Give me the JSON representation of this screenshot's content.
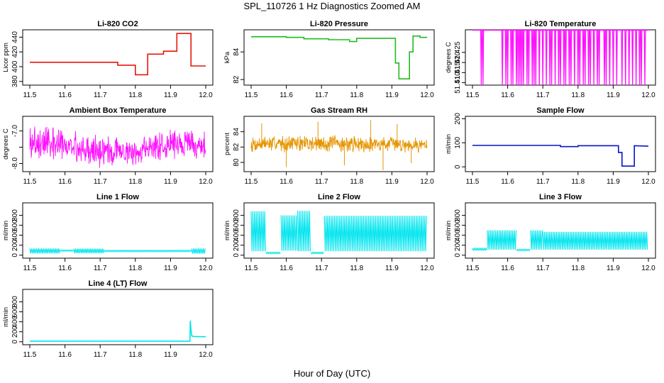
{
  "figure": {
    "main_title": "SPL_110726  1 Hz Diagnostics Zoomed AM",
    "x_label": "Hour of Day (UTC)"
  },
  "chart_data": [
    {
      "id": "co2",
      "type": "line",
      "title": "Li-820 CO2",
      "ylabel": "Licor ppm",
      "color": "#e8150b",
      "style": "steps",
      "xlim": [
        11.5,
        12.0
      ],
      "ylim": [
        375,
        450
      ],
      "xticks": [
        "11.5",
        "11.6",
        "11.7",
        "11.8",
        "11.9",
        "12.0"
      ],
      "yticks": [
        380,
        400,
        420,
        440
      ],
      "series": [
        {
          "name": "CO2",
          "x": [
            11.5,
            11.75,
            11.75,
            11.8,
            11.8,
            11.835,
            11.835,
            11.88,
            11.88,
            11.918,
            11.918,
            11.958,
            11.958,
            12.0
          ],
          "y": [
            406,
            406,
            402,
            402,
            389,
            389,
            417,
            417,
            421,
            421,
            445,
            445,
            401,
            401
          ]
        }
      ]
    },
    {
      "id": "pressure",
      "type": "line",
      "title": "Li-820 Pressure",
      "ylabel": "kPa",
      "color": "#22bb22",
      "style": "steps",
      "xlim": [
        11.5,
        12.0
      ],
      "ylim": [
        81.6,
        85.6
      ],
      "xticks": [
        "11.5",
        "11.6",
        "11.7",
        "11.8",
        "11.9",
        "12.0"
      ],
      "yticks": [
        82,
        84
      ],
      "series": [
        {
          "name": "Pressure",
          "x": [
            11.5,
            11.6,
            11.6,
            11.65,
            11.65,
            11.72,
            11.72,
            11.78,
            11.78,
            11.8,
            11.8,
            11.91,
            11.91,
            11.92,
            11.92,
            11.95,
            11.95,
            11.96,
            11.96,
            11.98,
            11.98,
            12.0
          ],
          "y": [
            85.1,
            85.1,
            85.05,
            85.05,
            84.95,
            84.95,
            84.88,
            84.88,
            84.75,
            84.75,
            84.98,
            84.98,
            83.2,
            83.2,
            82.05,
            82.05,
            84.0,
            84.0,
            85.15,
            85.15,
            85.05,
            85.05
          ]
        }
      ]
    },
    {
      "id": "licor_temp",
      "type": "line",
      "title": "Li-820 Temperature",
      "ylabel": "degrees C",
      "color": "#ff10ff",
      "style": "spikes",
      "spike_direction": "down",
      "xlim": [
        11.5,
        12.0
      ],
      "ylim": [
        51.4088,
        51.4362
      ],
      "xticks": [
        "11.5",
        "11.6",
        "11.7",
        "11.8",
        "11.9",
        "12.0"
      ],
      "yticks": [
        51.41,
        51.415,
        51.42,
        51.425
      ],
      "ytick_labels": [
        "51.410",
        "51.415",
        "51.420",
        "51.425"
      ],
      "series": [
        {
          "name": "Temperature",
          "baseline": 51.436,
          "low": 51.4088,
          "spike_x": [
            11.525,
            11.53,
            11.585,
            11.595,
            11.6,
            11.61,
            11.615,
            11.625,
            11.63,
            11.635,
            11.64,
            11.645,
            11.655,
            11.66,
            11.67,
            11.675,
            11.68,
            11.69,
            11.7,
            11.71,
            11.72,
            11.725,
            11.735,
            11.745,
            11.75,
            11.76,
            11.765,
            11.775,
            11.78,
            11.79,
            11.8,
            11.805,
            11.815,
            11.82,
            11.83,
            11.835,
            11.845,
            11.855,
            11.86,
            11.875,
            11.88,
            11.89,
            11.9,
            11.91,
            11.925,
            11.935,
            11.945,
            11.955,
            11.965,
            11.975,
            11.98,
            11.99
          ]
        }
      ]
    },
    {
      "id": "box_temp",
      "type": "line",
      "title": "Ambient Box Temperature",
      "ylabel": "degrees C",
      "color": "#ff10ff",
      "style": "noise",
      "xlim": [
        11.5,
        12.0
      ],
      "ylim": [
        -8.25,
        -6.55
      ],
      "xticks": [
        "11.5",
        "11.6",
        "11.7",
        "11.8",
        "11.9",
        "12.0"
      ],
      "yticks": [
        -8.0,
        -7.5,
        -7.0
      ],
      "ytick_labels": [
        "-8.0",
        "",
        "-7.0"
      ],
      "series": [
        {
          "name": "Box temperature",
          "x": [
            11.5,
            11.55,
            11.6,
            11.65,
            11.7,
            11.75,
            11.8,
            11.85,
            11.9,
            11.95,
            12.0
          ],
          "y_min": [
            -7.95,
            -8.0,
            -8.05,
            -8.1,
            -8.15,
            -8.15,
            -8.1,
            -8.0,
            -7.95,
            -7.9,
            -7.95
          ],
          "y_max": [
            -6.7,
            -6.75,
            -6.9,
            -7.0,
            -7.05,
            -7.1,
            -7.15,
            -7.0,
            -6.9,
            -6.9,
            -6.95
          ],
          "seed": 3
        }
      ]
    },
    {
      "id": "rh",
      "type": "line",
      "title": "Gas Stream RH",
      "ylabel": "percent",
      "color": "#e69500",
      "style": "noise",
      "xlim": [
        11.5,
        12.0
      ],
      "ylim": [
        78.8,
        86.0
      ],
      "xticks": [
        "11.5",
        "11.6",
        "11.7",
        "11.8",
        "11.9",
        "12.0"
      ],
      "yticks": [
        80,
        82,
        84
      ],
      "series": [
        {
          "name": "RH",
          "x": [
            11.5,
            11.6,
            11.7,
            11.8,
            11.9,
            12.0
          ],
          "y_min": [
            81.2,
            81.3,
            81.1,
            81.2,
            81.3,
            81.2
          ],
          "y_max": [
            83.6,
            83.7,
            83.8,
            83.6,
            83.5,
            83.4
          ],
          "outliers": [
            [
              11.53,
              85.1
            ],
            [
              11.6,
              79.4
            ],
            [
              11.69,
              85.3
            ],
            [
              11.765,
              79.6
            ],
            [
              11.84,
              85.5
            ],
            [
              11.875,
              79.0
            ],
            [
              11.915,
              85.0
            ],
            [
              11.955,
              79.9
            ]
          ],
          "seed": 7
        }
      ]
    },
    {
      "id": "sample_flow",
      "type": "line",
      "title": "Sample Flow",
      "ylabel": "ml/min",
      "color": "#0a14c8",
      "style": "steps",
      "xlim": [
        11.5,
        12.0
      ],
      "ylim": [
        -20,
        210
      ],
      "xticks": [
        "11.5",
        "11.6",
        "11.7",
        "11.8",
        "11.9",
        "12.0"
      ],
      "yticks": [
        0,
        100,
        200
      ],
      "series": [
        {
          "name": "Sample flow",
          "x": [
            11.5,
            11.75,
            11.75,
            11.8,
            11.8,
            11.915,
            11.915,
            11.925,
            11.925,
            11.955,
            11.955,
            11.96,
            11.96,
            12.0
          ],
          "y": [
            89,
            89,
            84,
            84,
            88,
            88,
            60,
            60,
            3,
            3,
            3,
            3,
            88,
            86
          ]
        }
      ]
    },
    {
      "id": "line1",
      "type": "line",
      "title": "Line 1 Flow",
      "ylabel": "ml/min",
      "color": "#00e5ee",
      "style": "bands",
      "xlim": [
        11.5,
        12.0
      ],
      "ylim": [
        -60,
        1050
      ],
      "xticks": [
        "11.5",
        "11.6",
        "11.7",
        "11.8",
        "11.9",
        "12.0"
      ],
      "yticks": [
        0,
        200,
        400,
        600,
        800
      ],
      "series": [
        {
          "name": "Line 1 flow",
          "segments": [
            [
              11.5,
              11.585,
              35,
              135
            ],
            [
              11.585,
              11.625,
              80,
              105
            ],
            [
              11.625,
              11.71,
              40,
              130
            ],
            [
              11.71,
              11.96,
              70,
              100
            ],
            [
              11.96,
              12.0,
              30,
              135
            ]
          ]
        }
      ]
    },
    {
      "id": "line2",
      "type": "line",
      "title": "Line 2 Flow",
      "ylabel": "ml/min",
      "color": "#00e5ee",
      "style": "bands",
      "xlim": [
        11.5,
        12.0
      ],
      "ylim": [
        -60,
        1050
      ],
      "xticks": [
        "11.5",
        "11.6",
        "11.7",
        "11.8",
        "11.9",
        "12.0"
      ],
      "yticks": [
        0,
        200,
        400,
        600,
        800
      ],
      "series": [
        {
          "name": "Line 2 flow",
          "segments": [
            [
              11.5,
              11.542,
              80,
              880
            ],
            [
              11.542,
              11.585,
              30,
              60
            ],
            [
              11.585,
              11.632,
              90,
              800
            ],
            [
              11.632,
              11.67,
              80,
              890
            ],
            [
              11.67,
              11.708,
              30,
              60
            ],
            [
              11.708,
              12.0,
              80,
              790
            ]
          ]
        }
      ]
    },
    {
      "id": "line3",
      "type": "line",
      "title": "Line 3 Flow",
      "ylabel": "ml/min",
      "color": "#00e5ee",
      "style": "bands",
      "xlim": [
        11.5,
        12.0
      ],
      "ylim": [
        -60,
        1050
      ],
      "xticks": [
        "11.5",
        "11.6",
        "11.7",
        "11.8",
        "11.9",
        "12.0"
      ],
      "yticks": [
        0,
        200,
        400,
        600,
        800
      ],
      "series": [
        {
          "name": "Line 3 flow",
          "segments": [
            [
              11.5,
              11.542,
              100,
              140
            ],
            [
              11.542,
              11.625,
              110,
              500
            ],
            [
              11.625,
              11.665,
              90,
              120
            ],
            [
              11.665,
              11.7,
              110,
              500
            ],
            [
              11.7,
              12.0,
              110,
              470
            ]
          ]
        }
      ]
    },
    {
      "id": "line4",
      "type": "line",
      "title": "Line 4 (LT) Flow",
      "ylabel": "ml/min",
      "color": "#00e5ee",
      "style": "steps",
      "xlim": [
        11.5,
        12.0
      ],
      "ylim": [
        -60,
        1050
      ],
      "xticks": [
        "11.5",
        "11.6",
        "11.7",
        "11.8",
        "11.9",
        "12.0"
      ],
      "yticks": [
        0,
        200,
        400,
        600,
        800
      ],
      "series": [
        {
          "name": "Line 4 flow",
          "x": [
            11.5,
            11.955,
            11.956,
            11.958,
            11.96,
            11.965,
            12.0
          ],
          "y": [
            10,
            10,
            420,
            250,
            120,
            105,
            100
          ]
        }
      ]
    }
  ]
}
